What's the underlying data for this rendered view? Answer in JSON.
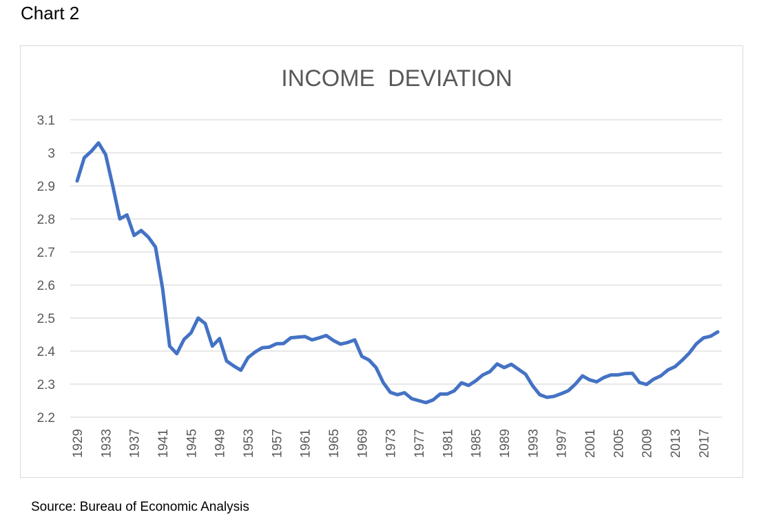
{
  "caption": "Chart 2",
  "source": "Source: Bureau of Economic Analysis",
  "chart_data": {
    "type": "line",
    "title": "INCOME  DEVIATION",
    "xlabel": "",
    "ylabel": "",
    "ylim": [
      2.2,
      3.1
    ],
    "yticks": [
      2.2,
      2.3,
      2.4,
      2.5,
      2.6,
      2.7,
      2.8,
      2.9,
      3.0,
      3.1
    ],
    "ytick_labels": [
      "2.2",
      "2.3",
      "2.4",
      "2.5",
      "2.6",
      "2.7",
      "2.8",
      "2.9",
      "3",
      "3.1"
    ],
    "xtick_labels": [
      "1929",
      "1933",
      "1937",
      "1941",
      "1945",
      "1949",
      "1953",
      "1957",
      "1961",
      "1965",
      "1969",
      "1973",
      "1977",
      "1981",
      "1985",
      "1989",
      "1993",
      "1997",
      "2001",
      "2005",
      "2009",
      "2013",
      "2017"
    ],
    "grid": true,
    "line_color": "#4472c4",
    "x": [
      1929,
      1930,
      1931,
      1932,
      1933,
      1934,
      1935,
      1936,
      1937,
      1938,
      1939,
      1940,
      1941,
      1942,
      1943,
      1944,
      1945,
      1946,
      1947,
      1948,
      1949,
      1950,
      1951,
      1952,
      1953,
      1954,
      1955,
      1956,
      1957,
      1958,
      1959,
      1960,
      1961,
      1962,
      1963,
      1964,
      1965,
      1966,
      1967,
      1968,
      1969,
      1970,
      1971,
      1972,
      1973,
      1974,
      1975,
      1976,
      1977,
      1978,
      1979,
      1980,
      1981,
      1982,
      1983,
      1984,
      1985,
      1986,
      1987,
      1988,
      1989,
      1990,
      1991,
      1992,
      1993,
      1994,
      1995,
      1996,
      1997,
      1998,
      1999,
      2000,
      2001,
      2002,
      2003,
      2004,
      2005,
      2006,
      2007,
      2008,
      2009,
      2010,
      2011,
      2012,
      2013,
      2014,
      2015,
      2016,
      2017,
      2018,
      2019
    ],
    "series": [
      {
        "name": "Income Deviation",
        "values": [
          2.915,
          2.985,
          3.005,
          3.03,
          2.995,
          2.9,
          2.8,
          2.812,
          2.75,
          2.765,
          2.745,
          2.715,
          2.59,
          2.415,
          2.392,
          2.435,
          2.455,
          2.5,
          2.483,
          2.415,
          2.438,
          2.37,
          2.355,
          2.342,
          2.38,
          2.397,
          2.41,
          2.412,
          2.422,
          2.423,
          2.44,
          2.442,
          2.444,
          2.434,
          2.44,
          2.447,
          2.432,
          2.421,
          2.426,
          2.434,
          2.384,
          2.373,
          2.35,
          2.305,
          2.275,
          2.268,
          2.274,
          2.256,
          2.25,
          2.244,
          2.252,
          2.27,
          2.27,
          2.28,
          2.304,
          2.296,
          2.31,
          2.328,
          2.338,
          2.361,
          2.35,
          2.36,
          2.345,
          2.33,
          2.295,
          2.268,
          2.26,
          2.263,
          2.271,
          2.28,
          2.3,
          2.325,
          2.313,
          2.307,
          2.32,
          2.328,
          2.328,
          2.332,
          2.333,
          2.305,
          2.299,
          2.315,
          2.325,
          2.343,
          2.353,
          2.372,
          2.394,
          2.422,
          2.44,
          2.445,
          2.458
        ]
      }
    ]
  }
}
